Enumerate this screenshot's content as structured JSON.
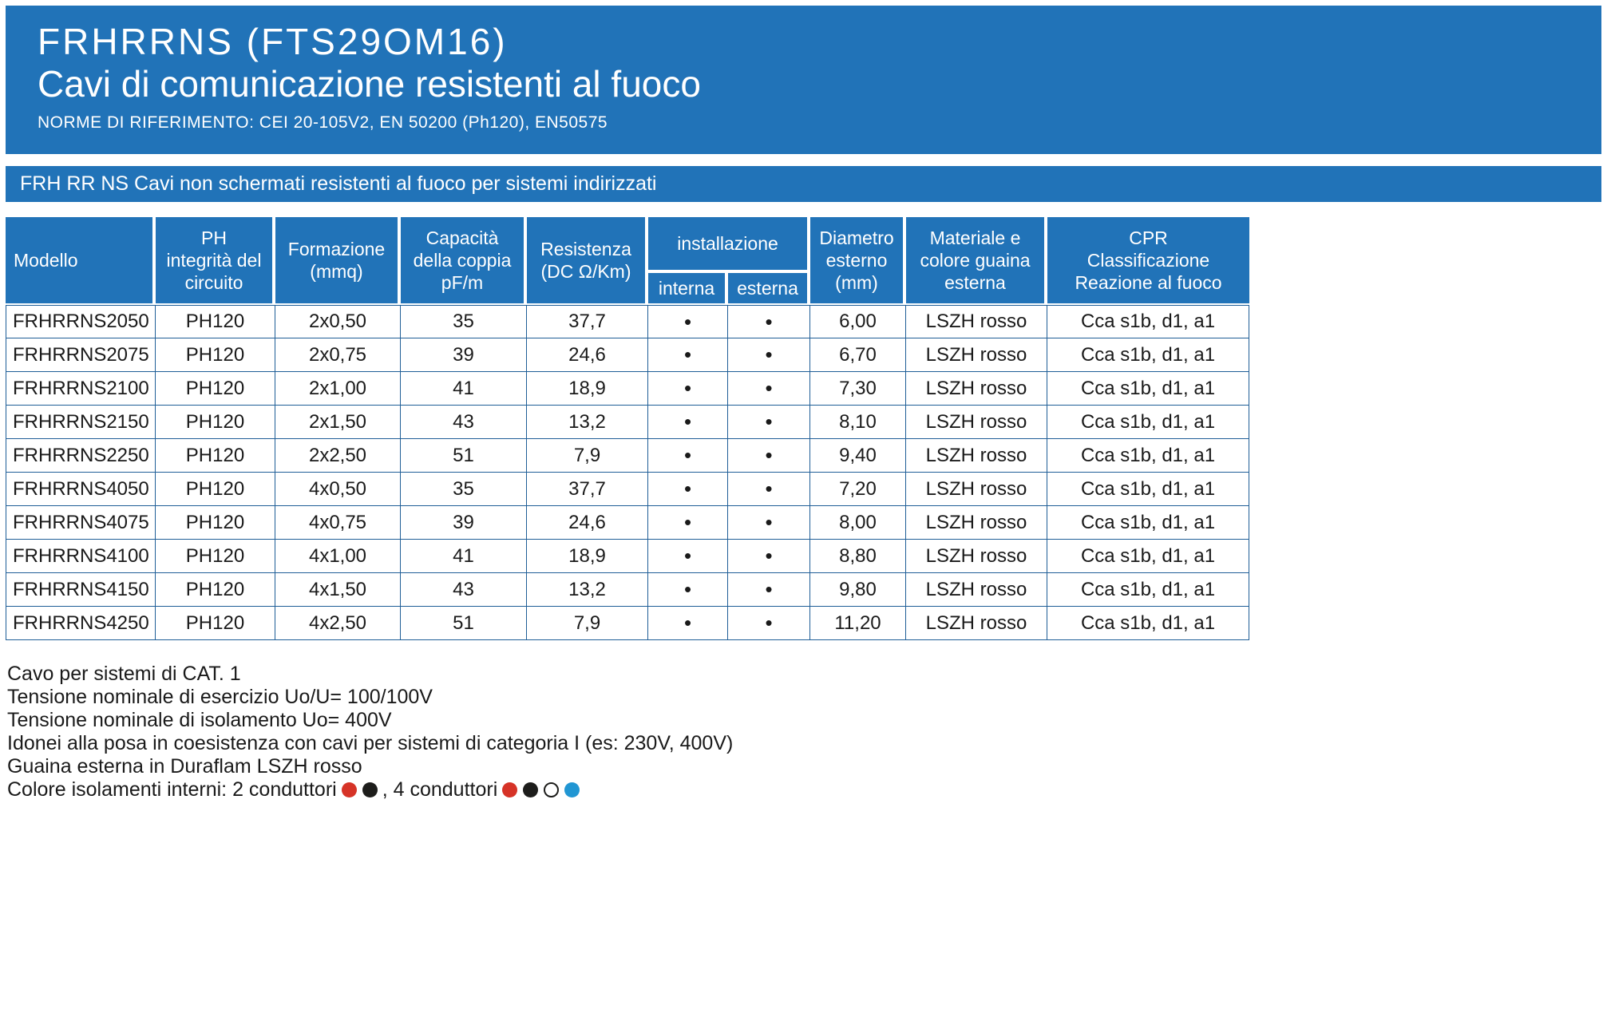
{
  "header": {
    "title": "FRHRRNS (FTS29OM16)",
    "subtitle": "Cavi di comunicazione resistenti al fuoco",
    "norms": "NORME DI RIFERIMENTO: CEI 20-105V2, EN 50200 (Ph120), EN50575"
  },
  "banner": {
    "text": "FRH RR NS Cavi non schermati resistenti al fuoco per sistemi indirizzati"
  },
  "table": {
    "headers": {
      "modello": "Modello",
      "ph": "PH\nintegrità del\ncircuito",
      "formazione": "Formazione\n(mmq)",
      "capacita": "Capacità\ndella coppia\npF/m",
      "resistenza": "Resistenza\n(DC Ω/Km)",
      "installazione": "installazione",
      "interna": "interna",
      "esterna": "esterna",
      "diametro": "Diametro\nesterno\n(mm)",
      "materiale": "Materiale e\ncolore guaina\nesterna",
      "cpr": "CPR\nClassificazione\nReazione al fuoco"
    },
    "rows": [
      {
        "model": "FRHRRNS2050",
        "ph": "PH120",
        "formazione": "2x0,50",
        "capacita": "35",
        "resistenza": "37,7",
        "interna": "•",
        "esterna": "•",
        "diametro": "6,00",
        "materiale": "LSZH rosso",
        "cpr": "Cca s1b, d1, a1"
      },
      {
        "model": "FRHRRNS2075",
        "ph": "PH120",
        "formazione": "2x0,75",
        "capacita": "39",
        "resistenza": "24,6",
        "interna": "•",
        "esterna": "•",
        "diametro": "6,70",
        "materiale": "LSZH rosso",
        "cpr": "Cca s1b, d1, a1"
      },
      {
        "model": "FRHRRNS2100",
        "ph": "PH120",
        "formazione": "2x1,00",
        "capacita": "41",
        "resistenza": "18,9",
        "interna": "•",
        "esterna": "•",
        "diametro": "7,30",
        "materiale": "LSZH rosso",
        "cpr": "Cca s1b, d1, a1"
      },
      {
        "model": "FRHRRNS2150",
        "ph": "PH120",
        "formazione": "2x1,50",
        "capacita": "43",
        "resistenza": "13,2",
        "interna": "•",
        "esterna": "•",
        "diametro": "8,10",
        "materiale": "LSZH rosso",
        "cpr": "Cca s1b, d1, a1"
      },
      {
        "model": "FRHRRNS2250",
        "ph": "PH120",
        "formazione": "2x2,50",
        "capacita": "51",
        "resistenza": "7,9",
        "interna": "•",
        "esterna": "•",
        "diametro": "9,40",
        "materiale": "LSZH rosso",
        "cpr": "Cca s1b, d1, a1"
      },
      {
        "model": "FRHRRNS4050",
        "ph": "PH120",
        "formazione": "4x0,50",
        "capacita": "35",
        "resistenza": "37,7",
        "interna": "•",
        "esterna": "•",
        "diametro": "7,20",
        "materiale": "LSZH rosso",
        "cpr": "Cca s1b, d1, a1"
      },
      {
        "model": "FRHRRNS4075",
        "ph": "PH120",
        "formazione": "4x0,75",
        "capacita": "39",
        "resistenza": "24,6",
        "interna": "•",
        "esterna": "•",
        "diametro": "8,00",
        "materiale": "LSZH rosso",
        "cpr": "Cca s1b, d1, a1"
      },
      {
        "model": "FRHRRNS4100",
        "ph": "PH120",
        "formazione": "4x1,00",
        "capacita": "41",
        "resistenza": "18,9",
        "interna": "•",
        "esterna": "•",
        "diametro": "8,80",
        "materiale": "LSZH rosso",
        "cpr": "Cca s1b, d1, a1"
      },
      {
        "model": "FRHRRNS4150",
        "ph": "PH120",
        "formazione": "4x1,50",
        "capacita": "43",
        "resistenza": "13,2",
        "interna": "•",
        "esterna": "•",
        "diametro": "9,80",
        "materiale": "LSZH rosso",
        "cpr": "Cca s1b, d1, a1"
      },
      {
        "model": "FRHRRNS4250",
        "ph": "PH120",
        "formazione": "4x2,50",
        "capacita": "51",
        "resistenza": "7,9",
        "interna": "•",
        "esterna": "•",
        "diametro": "11,20",
        "materiale": "LSZH rosso",
        "cpr": "Cca s1b, d1, a1"
      }
    ]
  },
  "footer": {
    "lines": [
      "Cavo per sistemi di CAT. 1",
      "Tensione nominale di esercizio Uo/U= 100/100V",
      "Tensione nominale di isolamento Uo= 400V",
      "Idonei alla posa in coesistenza con cavi per sistemi di categoria I (es: 230V, 400V)",
      "Guaina esterna in Duraflam LSZH rosso"
    ],
    "colors_line": {
      "prefix": "Colore isolamenti interni: 2 conduttori",
      "middle": ", 4 conduttori",
      "two_conductor_dots": [
        "#d63327",
        "#1d1d1b"
      ],
      "four_conductor_dots": [
        "#d63327",
        "#1d1d1b",
        "#ffffff",
        "#2196d3"
      ]
    }
  },
  "colors": {
    "primary_blue": "#2173b8",
    "grid_line": "#1f5e97",
    "text": "#1a1a1a"
  }
}
